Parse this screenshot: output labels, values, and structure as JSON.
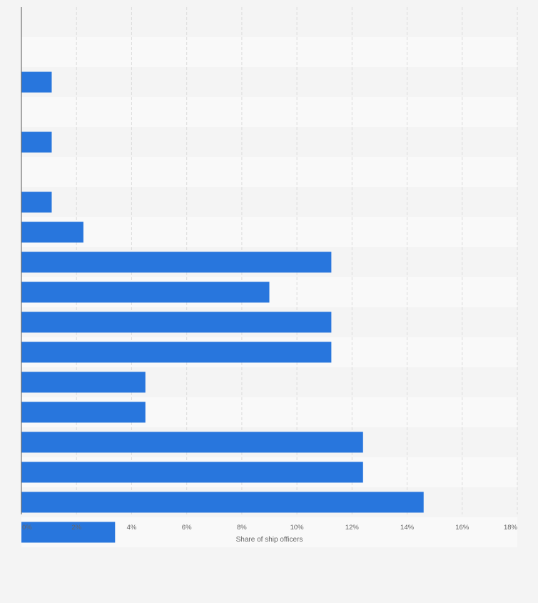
{
  "chart_data": {
    "type": "bar",
    "orientation": "horizontal",
    "title": "",
    "xlabel": "Share of ship officers",
    "ylabel": "",
    "unit": "%",
    "xlim": [
      0,
      18
    ],
    "xticks": [
      "0%",
      "2%",
      "4%",
      "6%",
      "8%",
      "10%",
      "12%",
      "14%",
      "16%",
      "18%"
    ],
    "grid": true,
    "legend": "none",
    "categories": [
      "",
      "",
      "",
      "",
      "",
      "",
      "",
      "",
      "",
      "",
      "",
      "",
      "",
      "",
      "",
      "",
      ""
    ],
    "values": [
      0,
      1.1,
      0,
      1.1,
      0,
      1.1,
      2.25,
      11.25,
      9.0,
      11.25,
      11.25,
      4.5,
      4.5,
      12.4,
      12.4,
      14.6,
      3.4
    ],
    "colors": {
      "bar": "#2876dd",
      "band_light": "#f9f9f9",
      "band_dark": "#f4f4f4",
      "grid": "#dcdcdc",
      "axis": "#555555",
      "tick_text": "#666666"
    }
  }
}
